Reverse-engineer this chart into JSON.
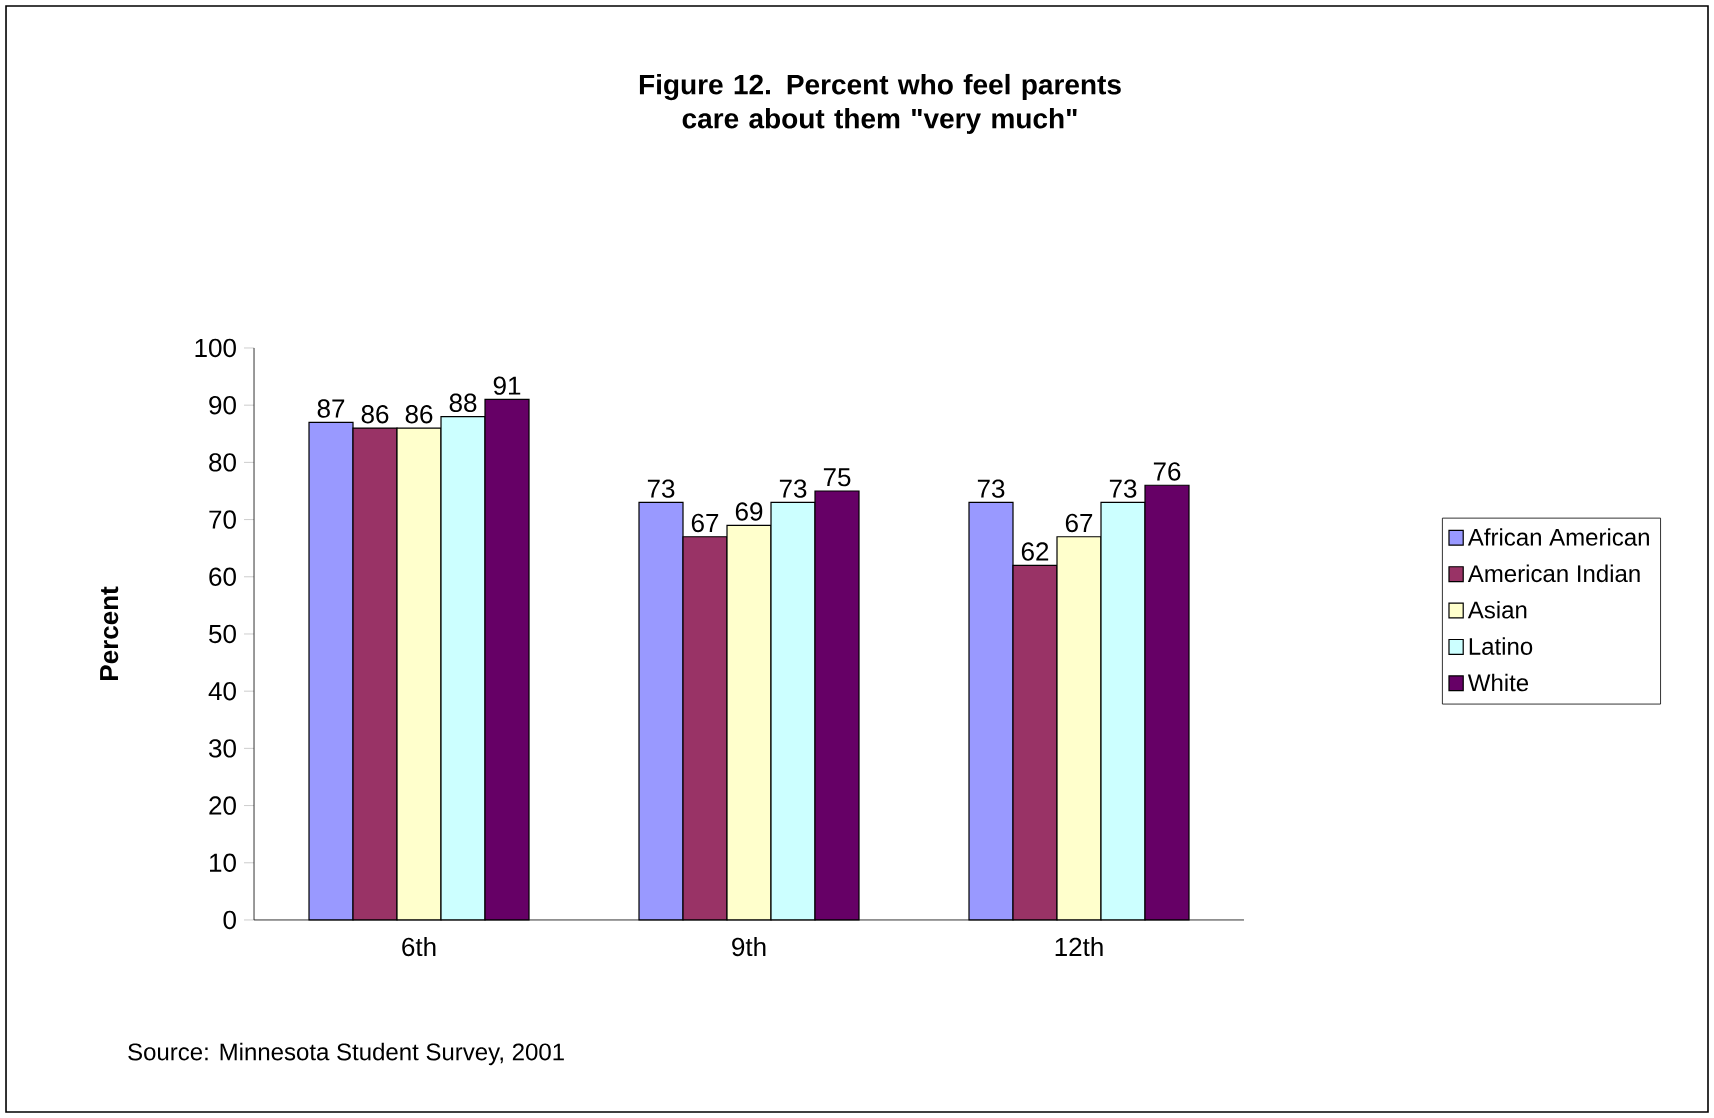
{
  "chart_data": {
    "type": "bar",
    "title": "Figure 12. Percent who feel parents care about them \"very much\"",
    "ylabel": "Percent",
    "categories": [
      "6th",
      "9th",
      "12th"
    ],
    "series": [
      {
        "name": "African American",
        "color": "#9999ff",
        "values": [
          87,
          73,
          73
        ]
      },
      {
        "name": "American Indian",
        "color": "#993366",
        "values": [
          86,
          67,
          62
        ]
      },
      {
        "name": "Asian",
        "color": "#ffffcc",
        "values": [
          86,
          69,
          67
        ]
      },
      {
        "name": "Latino",
        "color": "#ccffff",
        "values": [
          88,
          73,
          73
        ]
      },
      {
        "name": "White",
        "color": "#660066",
        "values": [
          91,
          75,
          76
        ]
      }
    ],
    "ylim": [
      0,
      100
    ],
    "yticks": [
      0,
      10,
      20,
      30,
      40,
      50,
      60,
      70,
      80,
      90,
      100
    ],
    "data_labels": true,
    "grid": false,
    "legend": "right",
    "annotations": [
      "Source: Minnesota Student Survey, 2001"
    ]
  }
}
